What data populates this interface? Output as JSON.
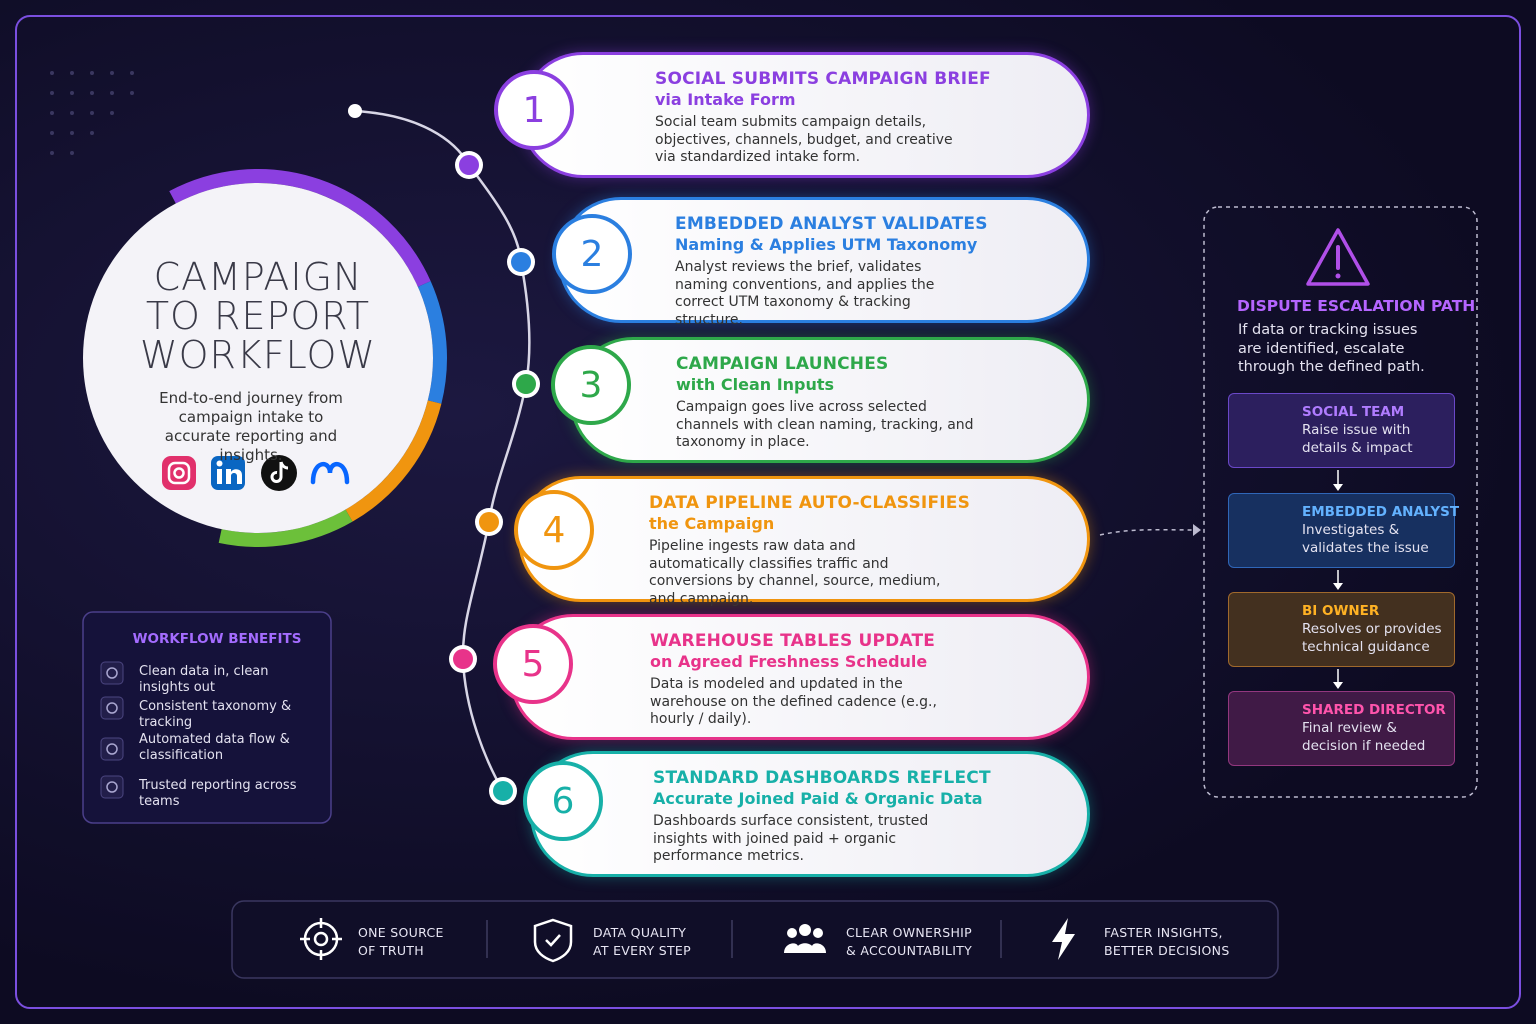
{
  "title": {
    "lines": [
      "CAMPAIGN",
      "TO REPORT",
      "WORKFLOW"
    ],
    "subtitle": "End-to-end journey from campaign intake to accurate reporting and insights."
  },
  "steps": [
    {
      "number": 1,
      "title": "SOCIAL SUBMITS CAMPAIGN BRIEF",
      "subtitle": "via Intake Form",
      "description": "Social team submits campaign details, objectives, channels, budget, and creative via standardized intake form.",
      "color": "#8b3fe0"
    },
    {
      "number": 2,
      "title": "EMBEDDED ANALYST VALIDATES",
      "subtitle": "Naming & Applies UTM Taxonomy",
      "description": "Analyst reviews the brief, validates naming conventions, and applies the correct UTM taxonomy & tracking structure.",
      "color": "#2b7fe0"
    },
    {
      "number": 3,
      "title": "CAMPAIGN LAUNCHES",
      "subtitle": "with Clean Inputs",
      "description": "Campaign goes live across selected channels with clean naming, tracking, and taxonomy in place.",
      "color": "#2ea84a"
    },
    {
      "number": 4,
      "title": "DATA PIPELINE AUTO-CLASSIFIES",
      "subtitle": "the Campaign",
      "description": "Pipeline ingests raw data and automatically classifies traffic and conversions by channel, source, medium, and campaign.",
      "color": "#f0950f"
    },
    {
      "number": 5,
      "title": "WAREHOUSE TABLES UPDATE",
      "subtitle": "on Agreed Freshness Schedule",
      "description": "Data is modeled and updated in the warehouse on the defined cadence (e.g., hourly / daily).",
      "color": "#e8338a"
    },
    {
      "number": 6,
      "title": "STANDARD DASHBOARDS REFLECT",
      "subtitle": "Accurate Joined Paid & Organic Data",
      "description": "Dashboards surface consistent, trusted insights with joined paid + organic performance metrics.",
      "color": "#17b0a8"
    }
  ],
  "benefits": {
    "title": "WORKFLOW BENEFITS",
    "items": [
      "Clean data in, clean insights out",
      "Consistent taxonomy & tracking",
      "Automated data flow & classification",
      "Trusted reporting across teams"
    ]
  },
  "escalation": {
    "title": "DISPUTE ESCALATION PATH",
    "description": "If data or tracking issues are identified, escalate through the defined path.",
    "roles": [
      {
        "name": "SOCIAL TEAM",
        "description": "Raise issue with details & impact"
      },
      {
        "name": "EMBEDDED ANALYST",
        "description": "Investigates & validates the issue"
      },
      {
        "name": "BI OWNER",
        "description": "Resolves or provides technical guidance"
      },
      {
        "name": "SHARED DIRECTOR",
        "description": "Final review & decision if needed"
      }
    ]
  },
  "footer": [
    {
      "lines": [
        "ONE SOURCE",
        "OF TRUTH"
      ]
    },
    {
      "lines": [
        "DATA QUALITY",
        "AT EVERY STEP"
      ]
    },
    {
      "lines": [
        "CLEAR OWNERSHIP",
        "& ACCOUNTABILITY"
      ]
    },
    {
      "lines": [
        "FASTER INSIGHTS,",
        "BETTER DECISIONS"
      ]
    }
  ]
}
